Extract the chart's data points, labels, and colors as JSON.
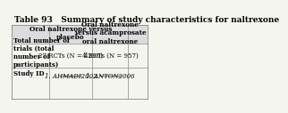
{
  "title": "Table 93   Summary of study characteristics for naltrexone",
  "col_headers": [
    "",
    "Oral naltrexone versus\nplacebo",
    "Oral naltrexone\nversus acamprosate\noral naltrexone",
    ""
  ],
  "rows": [
    {
      "label": "Total number of\ntrials (total\nnumber of\nparticipants)",
      "col1": "27 RCTs (N = 4296)",
      "col2": "4 RCTs (N = 957)",
      "col3": ""
    },
    {
      "label": "Study ID",
      "col1": "1. AHMADI2002",
      "col2": "1. ANTON2006",
      "col3": ""
    }
  ],
  "bg_color": "#f5f5f0",
  "header_bg": "#dcdcdc",
  "border_color": "#888888",
  "title_fontsize": 6.5,
  "cell_fontsize": 5.0,
  "header_fontsize": 5.2,
  "underline_study_ids": true
}
